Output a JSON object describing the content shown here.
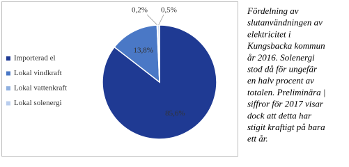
{
  "chart_data": {
    "type": "pie",
    "categories": [
      "Importerad el",
      "Lokal vindkraft",
      "Lokal vattenkraft",
      "Lokal solenergi"
    ],
    "values": [
      85.6,
      13.8,
      0.2,
      0.5
    ],
    "value_labels": [
      "85,6%",
      "13,8%",
      "0,2%",
      "0,5%"
    ],
    "colors": [
      "#1f3a93",
      "#4a78c6",
      "#8fb0e0",
      "#b9cdee"
    ],
    "legend": "left"
  },
  "caption": [
    "Fördelning av",
    "slutanvändningen av",
    "elektricitet i",
    "Kungsbacka kommun",
    "år 2016. Solenergi",
    "stod då för ungefär",
    "en halv procent av",
    "totalen. Preliminära |",
    "siffror för 2017 visar",
    "dock att detta har",
    "stigit kraftigt på bara",
    "ett år."
  ]
}
